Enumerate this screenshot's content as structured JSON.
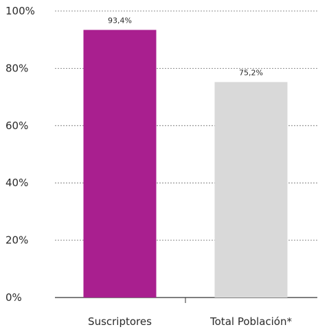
{
  "chart_data": {
    "type": "bar",
    "categories": [
      "Suscriptores",
      "Total Población*"
    ],
    "values": [
      93.4,
      75.2
    ],
    "value_labels": [
      "93,4%",
      "75,2%"
    ],
    "bar_colors": [
      "#A91F8F",
      "#D9D9D9"
    ],
    "ylim": [
      0,
      100
    ],
    "yticks": [
      0,
      20,
      40,
      60,
      80,
      100
    ],
    "ytick_labels": [
      "0%",
      "20%",
      "40%",
      "60%",
      "80%",
      "100%"
    ],
    "grid": true,
    "gridline_style": "dashed",
    "title": "",
    "xlabel": "",
    "ylabel": ""
  }
}
